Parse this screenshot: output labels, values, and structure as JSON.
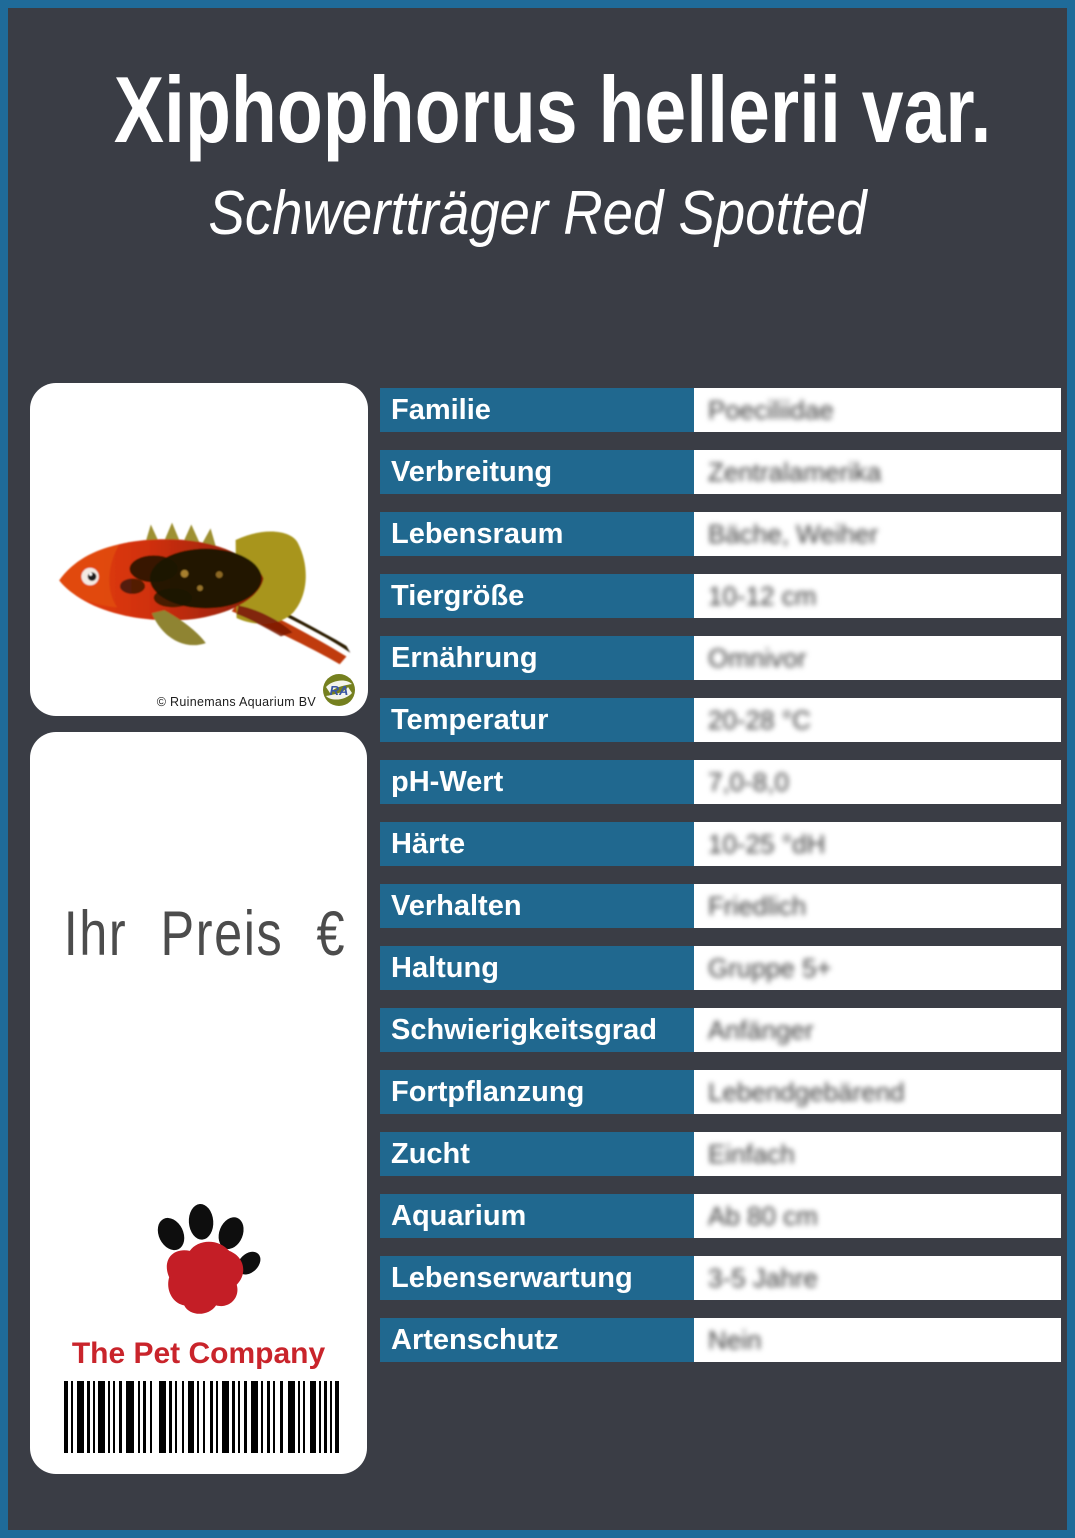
{
  "header": {
    "title": "Xiphophorus hellerii var.",
    "subtitle": "Schwertträger Red Spotted"
  },
  "photo_card": {
    "copyright": "© Ruinemans Aquarium BV",
    "logo_text": "RA"
  },
  "price_card": {
    "price_label": "Ihr Preis €",
    "brand": "The Pet Company"
  },
  "table": {
    "rows": [
      {
        "label": "Familie",
        "value": "Poeciliidae"
      },
      {
        "label": "Verbreitung",
        "value": "Zentralamerika"
      },
      {
        "label": "Lebensraum",
        "value": "Bäche, Weiher"
      },
      {
        "label": "Tiergröße",
        "value": "10-12 cm"
      },
      {
        "label": "Ernährung",
        "value": "Omnivor"
      },
      {
        "label": "Temperatur",
        "value": "20-28 °C"
      },
      {
        "label": "pH-Wert",
        "value": "7,0-8,0"
      },
      {
        "label": "Härte",
        "value": "10-25 °dH"
      },
      {
        "label": "Verhalten",
        "value": "Friedlich"
      },
      {
        "label": "Haltung",
        "value": "Gruppe 5+"
      },
      {
        "label": "Schwierigkeitsgrad",
        "value": "Anfänger"
      },
      {
        "label": "Fortpflanzung",
        "value": "Lebendgebärend"
      },
      {
        "label": "Zucht",
        "value": "Einfach"
      },
      {
        "label": "Aquarium",
        "value": "Ab 80 cm"
      },
      {
        "label": "Lebenserwartung",
        "value": "3-5 Jahre"
      },
      {
        "label": "Artenschutz",
        "value": "Nein"
      }
    ]
  },
  "colors": {
    "frame_blue": "#1f6b99",
    "cell_blue": "#20688f",
    "background_charcoal": "#3a3d45",
    "brand_red": "#c9242b",
    "price_text_gray": "#4c4c4c"
  }
}
